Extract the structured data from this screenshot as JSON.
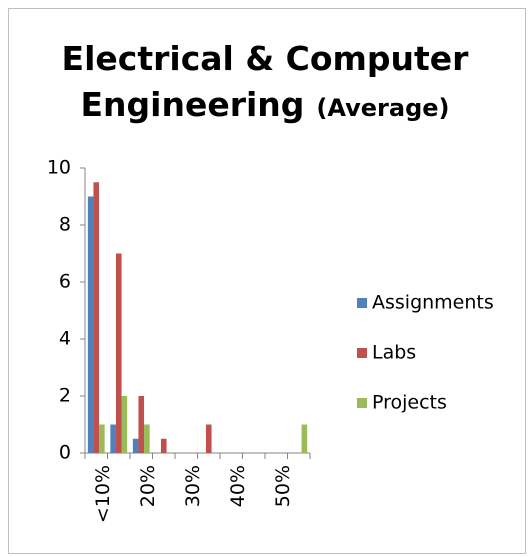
{
  "chart_data": {
    "type": "bar",
    "title": "Electrical & Computer Engineering",
    "subtitle": "(Average)",
    "categories": [
      "<10%",
      null,
      "20%",
      null,
      "30%",
      null,
      "40%",
      null,
      "50%",
      null
    ],
    "series": [
      {
        "name": "Assignments",
        "color": "#4f81bd",
        "values": [
          9,
          1,
          0.5,
          0,
          0,
          0,
          0,
          0,
          0,
          0
        ]
      },
      {
        "name": "Labs",
        "color": "#c0504d",
        "values": [
          9.5,
          7,
          2,
          0.5,
          0,
          1,
          0,
          0,
          0,
          0
        ]
      },
      {
        "name": "Projects",
        "color": "#9bbb59",
        "values": [
          1,
          2,
          1,
          0,
          0,
          0,
          0,
          0,
          0,
          1
        ]
      }
    ],
    "ylim": [
      0,
      10
    ],
    "yticks": [
      0,
      2,
      4,
      6,
      8,
      10
    ],
    "grid": false,
    "legend": "right"
  }
}
